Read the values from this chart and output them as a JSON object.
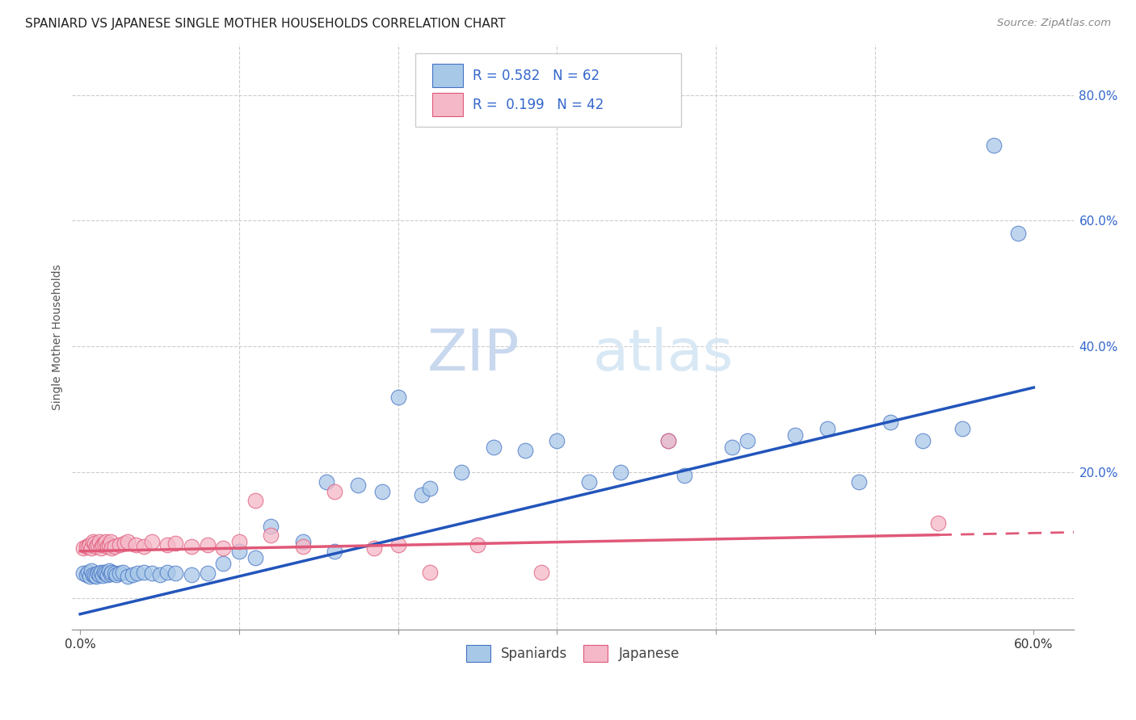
{
  "title": "SPANIARD VS JAPANESE SINGLE MOTHER HOUSEHOLDS CORRELATION CHART",
  "source": "Source: ZipAtlas.com",
  "ylabel": "Single Mother Households",
  "blue_color": "#a8c8e8",
  "blue_edge_color": "#4472c4",
  "pink_color": "#f4b8c8",
  "pink_edge_color": "#e05878",
  "blue_line_color": "#2255bb",
  "pink_line_color": "#e05878",
  "R_blue": 0.582,
  "N_blue": 62,
  "R_pink": 0.199,
  "N_pink": 42,
  "legend_labels": [
    "Spaniards",
    "Japanese"
  ],
  "watermark_zip": "ZIP",
  "watermark_atlas": "atlas",
  "blue_slope": 0.6,
  "blue_intercept": -0.025,
  "pink_slope": 0.048,
  "pink_intercept": 0.075,
  "blue_x": [
    0.002,
    0.004,
    0.005,
    0.006,
    0.007,
    0.008,
    0.009,
    0.01,
    0.011,
    0.012,
    0.013,
    0.014,
    0.015,
    0.016,
    0.017,
    0.018,
    0.019,
    0.02,
    0.022,
    0.023,
    0.025,
    0.027,
    0.03,
    0.033,
    0.036,
    0.04,
    0.045,
    0.05,
    0.055,
    0.06,
    0.07,
    0.08,
    0.09,
    0.1,
    0.11,
    0.12,
    0.14,
    0.155,
    0.16,
    0.175,
    0.19,
    0.2,
    0.215,
    0.22,
    0.24,
    0.26,
    0.28,
    0.3,
    0.32,
    0.34,
    0.37,
    0.38,
    0.41,
    0.42,
    0.45,
    0.47,
    0.49,
    0.51,
    0.53,
    0.555,
    0.575,
    0.59
  ],
  "blue_y": [
    0.04,
    0.038,
    0.042,
    0.035,
    0.044,
    0.037,
    0.036,
    0.035,
    0.04,
    0.038,
    0.042,
    0.036,
    0.041,
    0.04,
    0.038,
    0.044,
    0.039,
    0.042,
    0.04,
    0.038,
    0.04,
    0.042,
    0.035,
    0.038,
    0.04,
    0.042,
    0.04,
    0.038,
    0.042,
    0.04,
    0.038,
    0.04,
    0.055,
    0.075,
    0.065,
    0.115,
    0.09,
    0.185,
    0.075,
    0.18,
    0.17,
    0.32,
    0.165,
    0.175,
    0.2,
    0.24,
    0.235,
    0.25,
    0.185,
    0.2,
    0.25,
    0.195,
    0.24,
    0.25,
    0.26,
    0.27,
    0.185,
    0.28,
    0.25,
    0.27,
    0.72,
    0.58
  ],
  "pink_x": [
    0.002,
    0.004,
    0.005,
    0.006,
    0.007,
    0.008,
    0.009,
    0.01,
    0.011,
    0.012,
    0.013,
    0.014,
    0.015,
    0.016,
    0.017,
    0.018,
    0.019,
    0.02,
    0.022,
    0.025,
    0.028,
    0.03,
    0.035,
    0.04,
    0.045,
    0.055,
    0.06,
    0.07,
    0.08,
    0.09,
    0.1,
    0.11,
    0.12,
    0.14,
    0.16,
    0.185,
    0.2,
    0.22,
    0.25,
    0.29,
    0.37,
    0.54
  ],
  "pink_y": [
    0.08,
    0.082,
    0.083,
    0.085,
    0.08,
    0.09,
    0.088,
    0.082,
    0.085,
    0.09,
    0.08,
    0.085,
    0.088,
    0.09,
    0.083,
    0.085,
    0.09,
    0.08,
    0.082,
    0.085,
    0.088,
    0.09,
    0.085,
    0.083,
    0.09,
    0.085,
    0.088,
    0.082,
    0.085,
    0.08,
    0.09,
    0.155,
    0.1,
    0.082,
    0.17,
    0.08,
    0.085,
    0.042,
    0.085,
    0.042,
    0.25,
    0.12
  ]
}
